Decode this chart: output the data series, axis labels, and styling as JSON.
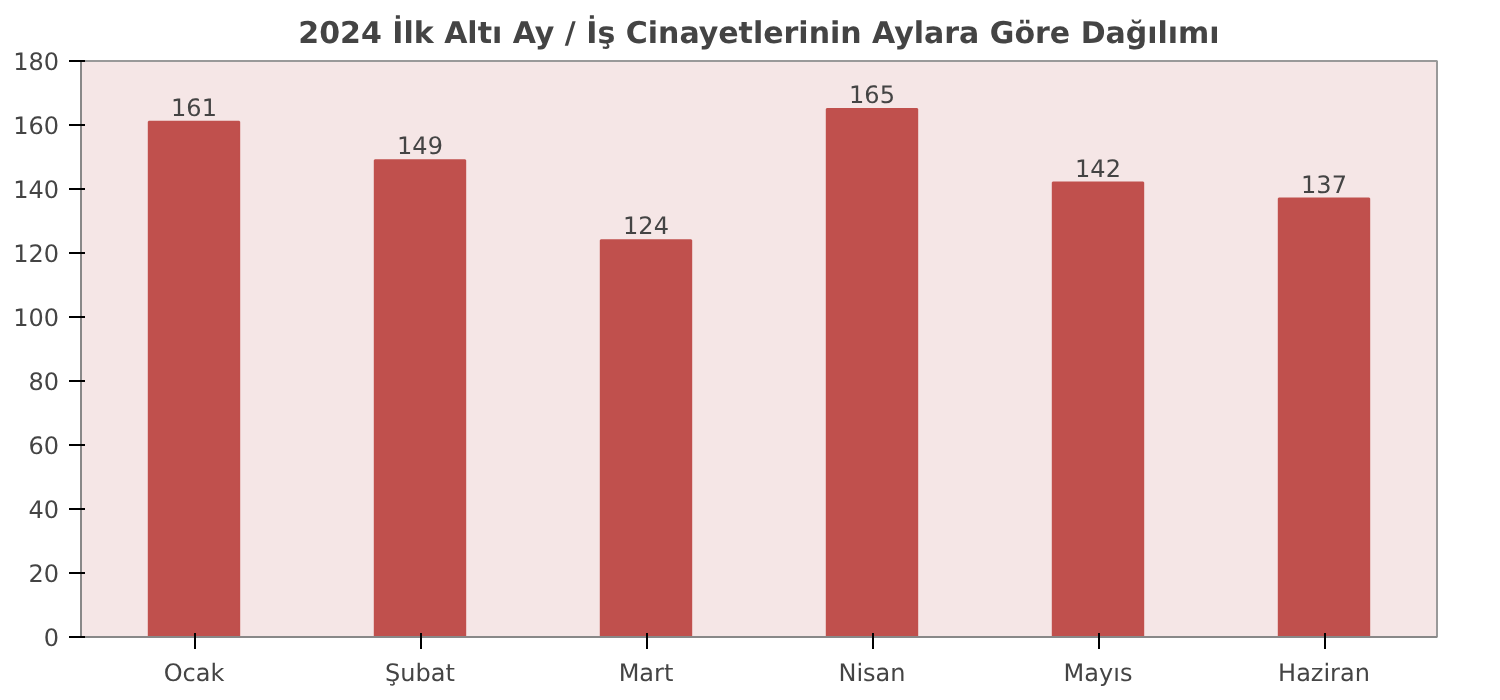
{
  "chart_data": {
    "type": "bar",
    "title": "2024 İlk Altı Ay / İş Cinayetlerinin Aylara Göre Dağılımı",
    "categories": [
      "Ocak",
      "Şubat",
      "Mart",
      "Nisan",
      "Mayıs",
      "Haziran"
    ],
    "values": [
      161,
      149,
      124,
      165,
      142,
      137
    ],
    "color": "#c0504d",
    "ylim": [
      0,
      180
    ],
    "yticks": [
      0,
      20,
      40,
      60,
      80,
      100,
      120,
      140,
      160,
      180
    ],
    "grid": false,
    "data_labels": true
  }
}
